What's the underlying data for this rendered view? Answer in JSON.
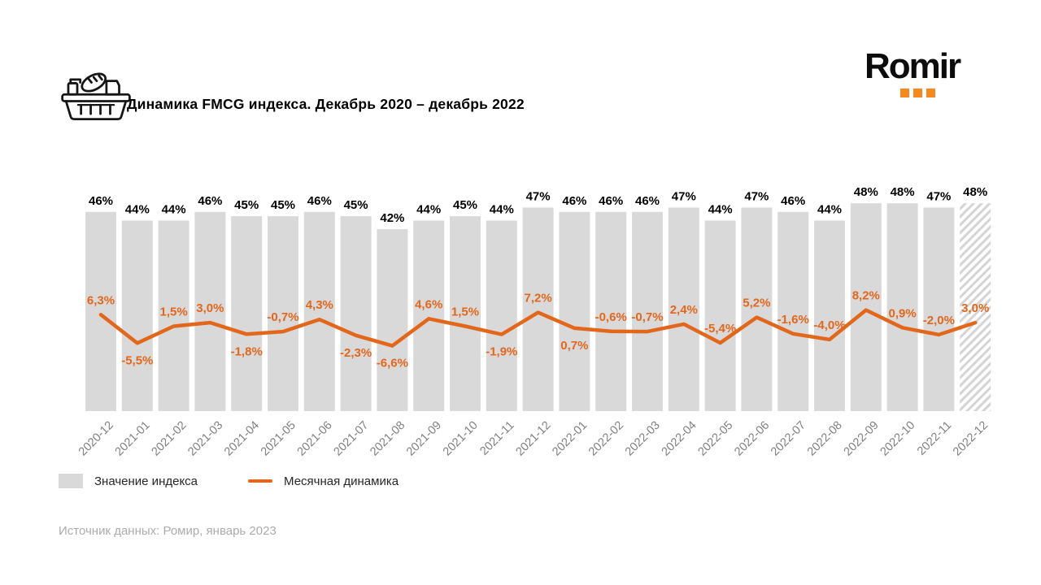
{
  "header": {
    "title": "Динамика FMCG индекса. Декабрь 2020 – декабрь 2022",
    "logo_text": "Romir"
  },
  "legend": {
    "bars_label": "Значение индекса",
    "line_label": "Месячная динамика"
  },
  "source": "Источник данных: Ромир, январь 2023",
  "colors": {
    "bar": "#d9d9d9",
    "bar_hatch": "#d4d4d4",
    "line": "#e3671b",
    "logo_dots": "#f6891e",
    "bar_label": "#000000",
    "axis_label": "#808080"
  },
  "chart_data": {
    "type": "bar+line combo",
    "title": "Динамика FMCG индекса. Декабрь 2020 – декабрь 2022",
    "categories": [
      "2020-12",
      "2021-01",
      "2021-02",
      "2021-03",
      "2021-04",
      "2021-05",
      "2021-06",
      "2021-07",
      "2021-08",
      "2021-09",
      "2021-10",
      "2021-11",
      "2021-12",
      "2022-01",
      "2022-02",
      "2022-03",
      "2022-04",
      "2022-05",
      "2022-06",
      "2022-07",
      "2022-08",
      "2022-09",
      "2022-10",
      "2022-11",
      "2022-12"
    ],
    "series": [
      {
        "name": "Значение индекса",
        "type": "bar",
        "unit": "%",
        "values": [
          46,
          44,
          44,
          46,
          45,
          45,
          46,
          45,
          42,
          44,
          45,
          44,
          47,
          46,
          46,
          46,
          47,
          44,
          47,
          46,
          44,
          48,
          48,
          47,
          48
        ]
      },
      {
        "name": "Месячная динамика",
        "type": "line",
        "unit": "%",
        "values": [
          6.3,
          -5.5,
          1.5,
          3.0,
          -1.8,
          -0.7,
          4.3,
          -2.3,
          -6.6,
          4.6,
          1.5,
          -1.9,
          7.2,
          0.7,
          -0.6,
          -0.7,
          2.4,
          -5.4,
          5.2,
          -1.6,
          -4.0,
          8.2,
          0.9,
          -2.0,
          3.0
        ]
      }
    ],
    "label_side": [
      "above",
      "below",
      "above",
      "above",
      "below",
      "above",
      "above",
      "below",
      "below",
      "above",
      "above",
      "below",
      "above",
      "below",
      "above",
      "above",
      "above",
      "above",
      "above",
      "above",
      "above",
      "above",
      "above",
      "above",
      "above"
    ],
    "hatched_last_bar": true,
    "decimal_separator": ",",
    "legend_position": "bottom-left",
    "grid": false,
    "y_axis_visible": false
  }
}
